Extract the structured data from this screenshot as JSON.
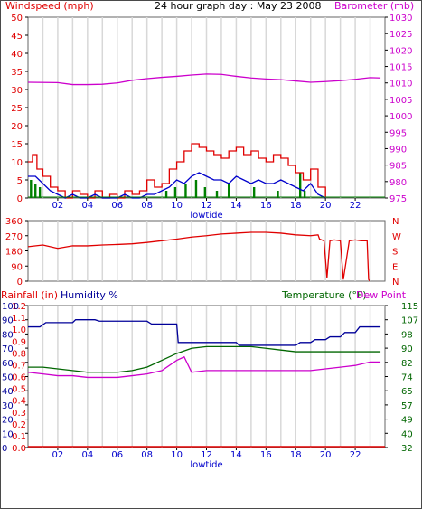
{
  "header": {
    "title": "24 hour graph day : May 23 2008",
    "left_label": "Windspeed (mph)",
    "right_label": "Barometer (mb)"
  },
  "bottom_header": {
    "rain_label": "Rainfall (in)",
    "humidity_label": "Humidity %",
    "temp_label": "Temperature (°F)",
    "dew_label": "Dew Point"
  },
  "colors": {
    "wind": "#e00000",
    "gust": "#0000cc",
    "rain_green": "#008000",
    "baro": "#cc00cc",
    "direction": "#e00000",
    "humidity": "#000099",
    "temperature": "#006600",
    "dewpoint": "#cc00cc",
    "rainfall": "#e00000",
    "grid": "#d8d8d8"
  },
  "chart_data": [
    {
      "type": "line",
      "name": "wind-baro",
      "x_ticks": [
        "02",
        "04",
        "06",
        "08",
        "10",
        "12",
        "14",
        "16",
        "18",
        "20",
        "22"
      ],
      "x_note": "lowtide",
      "xlim": [
        0,
        24
      ],
      "y_left": {
        "ticks": [
          "0",
          "5",
          "10",
          "15",
          "20",
          "25",
          "30",
          "35",
          "40",
          "45",
          "50"
        ],
        "ylim": [
          0,
          50
        ]
      },
      "y_right": {
        "ticks": [
          "975",
          "980",
          "985",
          "990",
          "995",
          "1000",
          "1005",
          "1010",
          "1015",
          "1020",
          "1025",
          "1030"
        ],
        "ylim": [
          975,
          1030
        ]
      },
      "series": [
        {
          "role": "barometer",
          "x": [
            0,
            2,
            3,
            4,
            5,
            6,
            7,
            8,
            9,
            10,
            11,
            12,
            13,
            14,
            15,
            16,
            17,
            18,
            19,
            20,
            21,
            22,
            23,
            23.7
          ],
          "values": [
            1010.2,
            1010.1,
            1009.5,
            1009.5,
            1009.6,
            1010.0,
            1010.8,
            1011.3,
            1011.7,
            1012.0,
            1012.4,
            1012.7,
            1012.6,
            1012.0,
            1011.5,
            1011.2,
            1011.0,
            1010.6,
            1010.2,
            1010.4,
            1010.7,
            1011.1,
            1011.6,
            1011.5
          ]
        },
        {
          "role": "windspeed",
          "x": [
            0,
            0.3,
            0.6,
            1,
            1.5,
            2,
            2.5,
            3,
            3.5,
            4,
            4.5,
            5,
            5.5,
            6,
            6.5,
            7,
            7.5,
            8,
            8.5,
            9,
            9.5,
            10,
            10.5,
            11,
            11.5,
            12,
            12.5,
            13,
            13.5,
            14,
            14.5,
            15,
            15.5,
            16,
            16.5,
            17,
            17.5,
            18,
            18.5,
            19,
            19.5,
            20
          ],
          "values": [
            10,
            12,
            8,
            6,
            3,
            2,
            0,
            2,
            1,
            0,
            2,
            0,
            1,
            0,
            2,
            1,
            2,
            5,
            3,
            4,
            8,
            10,
            13,
            15,
            14,
            13,
            12,
            11,
            13,
            14,
            12,
            13,
            11,
            10,
            12,
            11,
            9,
            7,
            5,
            8,
            3,
            0
          ]
        },
        {
          "role": "gust",
          "x": [
            0,
            0.5,
            1,
            1.5,
            2,
            2.5,
            3,
            3.5,
            4,
            4.5,
            5,
            5.5,
            6,
            6.5,
            7,
            7.5,
            8,
            8.5,
            9,
            9.5,
            10,
            10.5,
            11,
            11.5,
            12,
            12.5,
            13,
            13.5,
            14,
            14.5,
            15,
            15.5,
            16,
            16.5,
            17,
            17.5,
            18,
            18.5,
            19,
            19.5,
            20
          ],
          "values": [
            6,
            6,
            4,
            2,
            1,
            0,
            1,
            0,
            0,
            1,
            0,
            0,
            0,
            1,
            0,
            0,
            1,
            1,
            2,
            3,
            5,
            4,
            6,
            7,
            6,
            5,
            5,
            4,
            6,
            5,
            4,
            5,
            4,
            4,
            5,
            4,
            3,
            2,
            4,
            1,
            0
          ]
        },
        {
          "role": "rain-bars",
          "x": [
            0.2,
            0.5,
            0.8,
            9.3,
            9.9,
            10.6,
            11.3,
            11.9,
            12.7,
            13.5,
            15.2,
            16.8,
            18.3,
            18.6
          ],
          "values": [
            5,
            4,
            3,
            2,
            3,
            4,
            5,
            3,
            2,
            4,
            3,
            2,
            7,
            2
          ]
        }
      ]
    },
    {
      "type": "line",
      "name": "wind-direction",
      "y_ticks": [
        "0",
        "90",
        "180",
        "270",
        "360"
      ],
      "ylim": [
        0,
        360
      ],
      "right_labels": [
        "N",
        "W",
        "S",
        "E",
        "N"
      ],
      "xlim": [
        0,
        24
      ],
      "series": [
        {
          "role": "direction",
          "x": [
            0,
            1,
            2,
            3,
            4,
            5,
            6,
            7,
            8,
            9,
            10,
            11,
            12,
            13,
            14,
            15,
            16,
            17,
            18,
            19,
            19.5,
            19.6,
            19.9,
            20.1,
            20.3,
            20.6,
            21,
            21.2,
            21.6,
            22,
            22.4,
            22.8,
            22.9,
            23.0
          ],
          "values": [
            205,
            215,
            195,
            210,
            210,
            215,
            218,
            222,
            230,
            240,
            250,
            262,
            270,
            280,
            285,
            290,
            290,
            285,
            275,
            270,
            275,
            250,
            240,
            20,
            240,
            245,
            240,
            10,
            240,
            245,
            240,
            240,
            10,
            0
          ]
        }
      ]
    },
    {
      "type": "line",
      "name": "rain-humidity-temp",
      "x_ticks": [
        "02",
        "04",
        "06",
        "08",
        "10",
        "12",
        "14",
        "16",
        "18",
        "20",
        "22"
      ],
      "x_note": "lowtide",
      "xlim": [
        0,
        24
      ],
      "rain_ticks": [
        "0.0",
        "0.1",
        "0.2",
        "0.3",
        "0.4",
        "0.5",
        "0.6",
        "0.7",
        "0.8",
        "0.9",
        "1.0",
        "1.1",
        "1.2"
      ],
      "humidity_ticks": [
        "0",
        "10",
        "20",
        "30",
        "40",
        "50",
        "60",
        "70",
        "80",
        "90",
        "100"
      ],
      "humidity_ylim": [
        0,
        100
      ],
      "temp_ticks": [
        "32",
        "40",
        "49",
        "57",
        "65",
        "74",
        "82",
        "90",
        "98",
        "107",
        "115"
      ],
      "temp_ylim": [
        32,
        115
      ],
      "series": [
        {
          "role": "humidity",
          "x": [
            0,
            0.8,
            1.2,
            3.0,
            3.2,
            4.5,
            4.8,
            8.0,
            8.3,
            10.0,
            10.1,
            14.0,
            14.2,
            18.0,
            18.3,
            19.0,
            19.3,
            20.0,
            20.3,
            21.0,
            21.3,
            22.0,
            22.3,
            23.7
          ],
          "values": [
            85,
            85,
            88,
            88,
            90,
            90,
            89,
            89,
            87,
            87,
            74,
            74,
            72,
            72,
            74,
            74,
            76,
            76,
            78,
            78,
            81,
            81,
            85,
            85
          ]
        },
        {
          "role": "temperature",
          "x": [
            0,
            1,
            2,
            3,
            4,
            5,
            6,
            7,
            8,
            9,
            10,
            11,
            12,
            13,
            14,
            15,
            16,
            17,
            18,
            19,
            20,
            21,
            22,
            23,
            23.7
          ],
          "values": [
            79,
            79,
            78,
            77,
            76,
            76,
            76,
            77,
            79,
            83,
            87,
            90,
            91,
            91,
            91,
            91,
            90,
            89,
            88,
            88,
            88,
            88,
            88,
            88,
            88
          ]
        },
        {
          "role": "dewpoint",
          "x": [
            0,
            1,
            2,
            3,
            4,
            5,
            6,
            7,
            8,
            9,
            10,
            10.5,
            11,
            12,
            13,
            14,
            15,
            16,
            17,
            18,
            19,
            20,
            21,
            22,
            23,
            23.7
          ],
          "values": [
            76,
            75,
            74,
            74,
            73,
            73,
            73,
            74,
            75,
            77,
            83,
            85,
            76,
            77,
            77,
            77,
            77,
            77,
            77,
            77,
            77,
            78,
            79,
            80,
            82,
            82
          ]
        },
        {
          "role": "rainfall",
          "x": [
            0,
            24
          ],
          "values": [
            0.0,
            0.0
          ]
        }
      ]
    }
  ]
}
